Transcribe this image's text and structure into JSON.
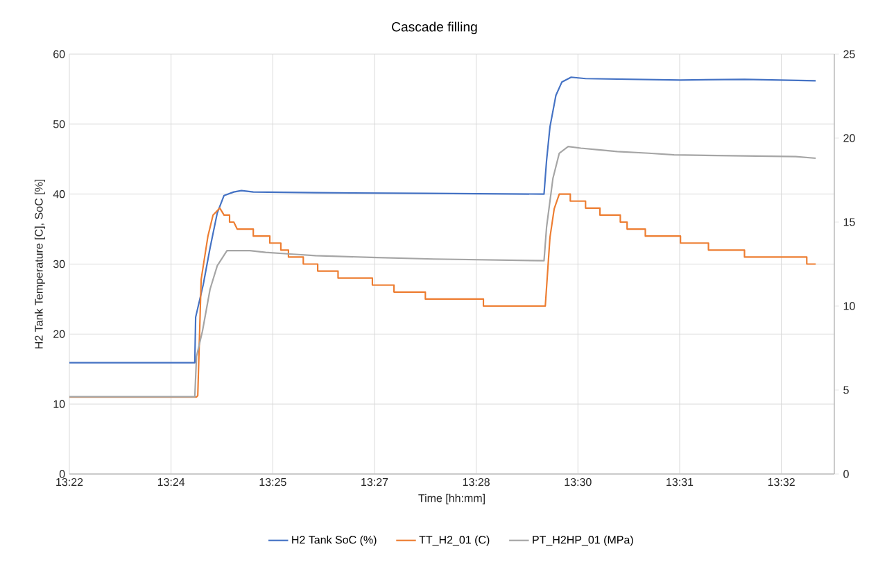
{
  "chart_data": {
    "type": "line",
    "title": "Cascade filling",
    "xlabel": "Time [hh:mm]",
    "ylabel": "H2 Tank Temperature [C],  SoC [%]",
    "xlim": [
      13.3727,
      13.5532
    ],
    "xticks": [
      {
        "value": 13.3727,
        "label": "13:22"
      },
      {
        "value": 13.3967,
        "label": "13:24"
      },
      {
        "value": 13.4207,
        "label": "13:25"
      },
      {
        "value": 13.4447,
        "label": "13:27"
      },
      {
        "value": 13.4687,
        "label": "13:28"
      },
      {
        "value": 13.4927,
        "label": "13:30"
      },
      {
        "value": 13.5167,
        "label": "13:31"
      },
      {
        "value": 13.5407,
        "label": "13:32"
      }
    ],
    "ylim": [
      0,
      60
    ],
    "yticks": [
      0,
      10,
      20,
      30,
      40,
      50,
      60
    ],
    "y2lim": [
      0,
      25
    ],
    "y2ticks": [
      0,
      5,
      10,
      15,
      20,
      25
    ],
    "grid": true,
    "legend": "bottom",
    "series": [
      {
        "name": "H2 Tank SoC (%)",
        "color": "#4472c4",
        "x": [
          13.3727,
          13.4023,
          13.4025,
          13.4043,
          13.4059,
          13.4076,
          13.4092,
          13.4115,
          13.4133,
          13.4161,
          13.4308,
          13.4567,
          13.4847,
          13.4853,
          13.4861,
          13.4875,
          13.4889,
          13.4911,
          13.4945,
          13.5169,
          13.532,
          13.5488
        ],
        "values": [
          15.9,
          15.9,
          22.4,
          27.1,
          32.3,
          37.3,
          39.8,
          40.3,
          40.5,
          40.3,
          40.2,
          40.1,
          40.0,
          44.8,
          49.6,
          54.1,
          56.0,
          56.7,
          56.5,
          56.3,
          56.4,
          56.2
        ]
      },
      {
        "name": "TT_H2_01 (C)",
        "color": "#ed7d31",
        "x": [
          13.3727,
          13.4027,
          13.403,
          13.4038,
          13.4054,
          13.4066,
          13.4082,
          13.4092,
          13.4105,
          13.4105,
          13.4115,
          13.4123,
          13.4161,
          13.4161,
          13.42,
          13.42,
          13.4226,
          13.4226,
          13.4244,
          13.4244,
          13.4279,
          13.4279,
          13.4313,
          13.4313,
          13.4361,
          13.4361,
          13.4442,
          13.4442,
          13.4493,
          13.4493,
          13.4567,
          13.4567,
          13.4704,
          13.4704,
          13.485,
          13.4861,
          13.4871,
          13.4883,
          13.4909,
          13.4909,
          13.4945,
          13.4945,
          13.4979,
          13.4979,
          13.5027,
          13.5027,
          13.5043,
          13.5043,
          13.5086,
          13.5086,
          13.5169,
          13.5169,
          13.5235,
          13.5235,
          13.532,
          13.532,
          13.5467,
          13.5467,
          13.5488
        ],
        "values": [
          11.0,
          11.0,
          11.2,
          27.8,
          34.0,
          37.0,
          38.0,
          37.0,
          37.0,
          36.0,
          36.0,
          35.0,
          35.0,
          34.0,
          34.0,
          33.0,
          33.0,
          32.0,
          32.0,
          31.0,
          31.0,
          30.0,
          30.0,
          29.0,
          29.0,
          28.0,
          28.0,
          27.0,
          27.0,
          26.0,
          26.0,
          25.0,
          25.0,
          24.0,
          24.0,
          33.8,
          37.9,
          40.0,
          40.0,
          39.0,
          39.0,
          38.0,
          38.0,
          37.0,
          37.0,
          36.0,
          36.0,
          35.0,
          35.0,
          34.0,
          34.0,
          33.0,
          33.0,
          32.0,
          32.0,
          31.0,
          31.0,
          30.0,
          30.0
        ]
      },
      {
        "name": "PT_H2HP_01 (MPa)",
        "color": "#a5a5a5",
        "axis": "y2",
        "x": [
          13.3727,
          13.4023,
          13.4027,
          13.4041,
          13.4059,
          13.4076,
          13.4099,
          13.4153,
          13.419,
          13.4248,
          13.4308,
          13.4439,
          13.4586,
          13.4847,
          13.4853,
          13.4868,
          13.4883,
          13.4904,
          13.4934,
          13.4976,
          13.502,
          13.5094,
          13.5154,
          13.5441,
          13.5488
        ],
        "values": [
          4.6,
          4.6,
          7.0,
          8.5,
          11.0,
          12.4,
          13.3,
          13.3,
          13.2,
          13.1,
          13.0,
          12.9,
          12.8,
          12.7,
          14.7,
          17.6,
          19.1,
          19.5,
          19.4,
          19.3,
          19.2,
          19.1,
          19.0,
          18.9,
          18.8
        ]
      }
    ]
  }
}
